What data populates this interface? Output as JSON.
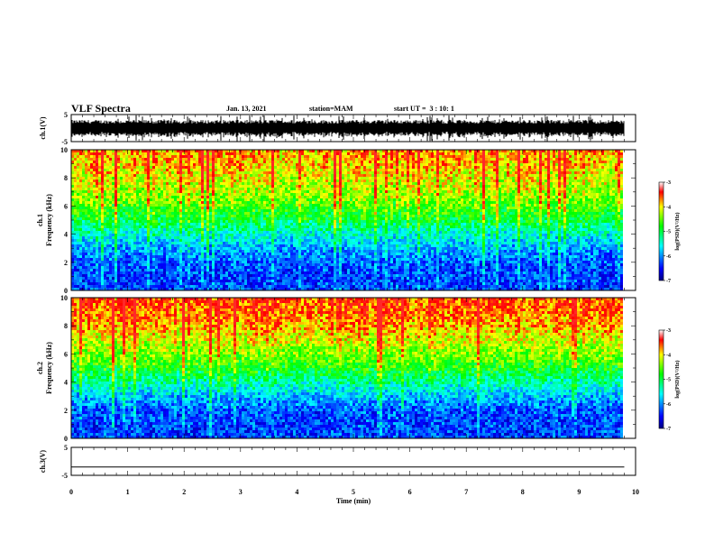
{
  "header": {
    "title": "VLF Spectra",
    "date": "Jan. 13, 2021",
    "station": "station=MAM",
    "start_ut": "start UT =  3 : 10: 1"
  },
  "chart_data": [
    {
      "type": "line",
      "panel": "ch1_waveform",
      "ylabel": "ch.1(V)",
      "ylim": [
        -5,
        5
      ],
      "y_ticks": [
        "5",
        "-5"
      ],
      "series_color": "#000000",
      "description_values": {
        "x_range_min": [
          0,
          9.8
        ],
        "typical_envelope": [
          -3,
          3
        ]
      }
    },
    {
      "type": "heatmap",
      "panel": "ch1_spectrogram",
      "ylabel_channel": "ch.1",
      "ylabel": "Frequency (kHz)",
      "ylim": [
        0,
        10
      ],
      "y_ticks": [
        "0",
        "2",
        "4",
        "6",
        "8",
        "10"
      ],
      "x_range_min": [
        0,
        9.8
      ],
      "colorbar": {
        "label": "log(PSD)(V²/Hz)",
        "range": [
          -7,
          -3
        ],
        "ticks": [
          "-3",
          "-4",
          "-5",
          "-6",
          "-7"
        ]
      },
      "approx_profile_logpsd": {
        "freq_khz": [
          0,
          1,
          2,
          3,
          4,
          5,
          6,
          7,
          8,
          9,
          10
        ],
        "value": [
          -6.3,
          -6.3,
          -6.2,
          -5.9,
          -5.5,
          -5.0,
          -4.6,
          -4.3,
          -4.1,
          -3.9,
          -3.8
        ]
      }
    },
    {
      "type": "heatmap",
      "panel": "ch2_spectrogram",
      "ylabel_channel": "ch.2",
      "ylabel": "Frequency (kHz)",
      "ylim": [
        0,
        10
      ],
      "y_ticks": [
        "0",
        "2",
        "4",
        "6",
        "8",
        "10"
      ],
      "x_range_min": [
        0,
        9.8
      ],
      "colorbar": {
        "label": "log(PSD)(V²/Hz)",
        "range": [
          -7,
          -3
        ],
        "ticks": [
          "-3",
          "-4",
          "-5",
          "-6",
          "-7"
        ]
      },
      "approx_profile_logpsd": {
        "freq_khz": [
          0,
          1,
          2,
          3,
          4,
          5,
          6,
          7,
          8,
          9,
          10
        ],
        "value": [
          -6.3,
          -6.3,
          -6.2,
          -5.8,
          -5.3,
          -4.8,
          -4.4,
          -4.1,
          -3.8,
          -3.6,
          -3.5
        ]
      }
    },
    {
      "type": "line",
      "panel": "ch3_waveform",
      "ylabel": "ch.3(V)",
      "ylim": [
        -5,
        5
      ],
      "y_ticks": [
        "5",
        "-5"
      ],
      "x": [
        0,
        9.8
      ],
      "y": [
        -2,
        -2
      ],
      "series_color": "#000000"
    }
  ],
  "xaxis": {
    "label": "Time (min)",
    "range": [
      0,
      10
    ],
    "ticks": [
      "0",
      "1",
      "2",
      "3",
      "4",
      "5",
      "6",
      "7",
      "8",
      "9",
      "10"
    ]
  }
}
